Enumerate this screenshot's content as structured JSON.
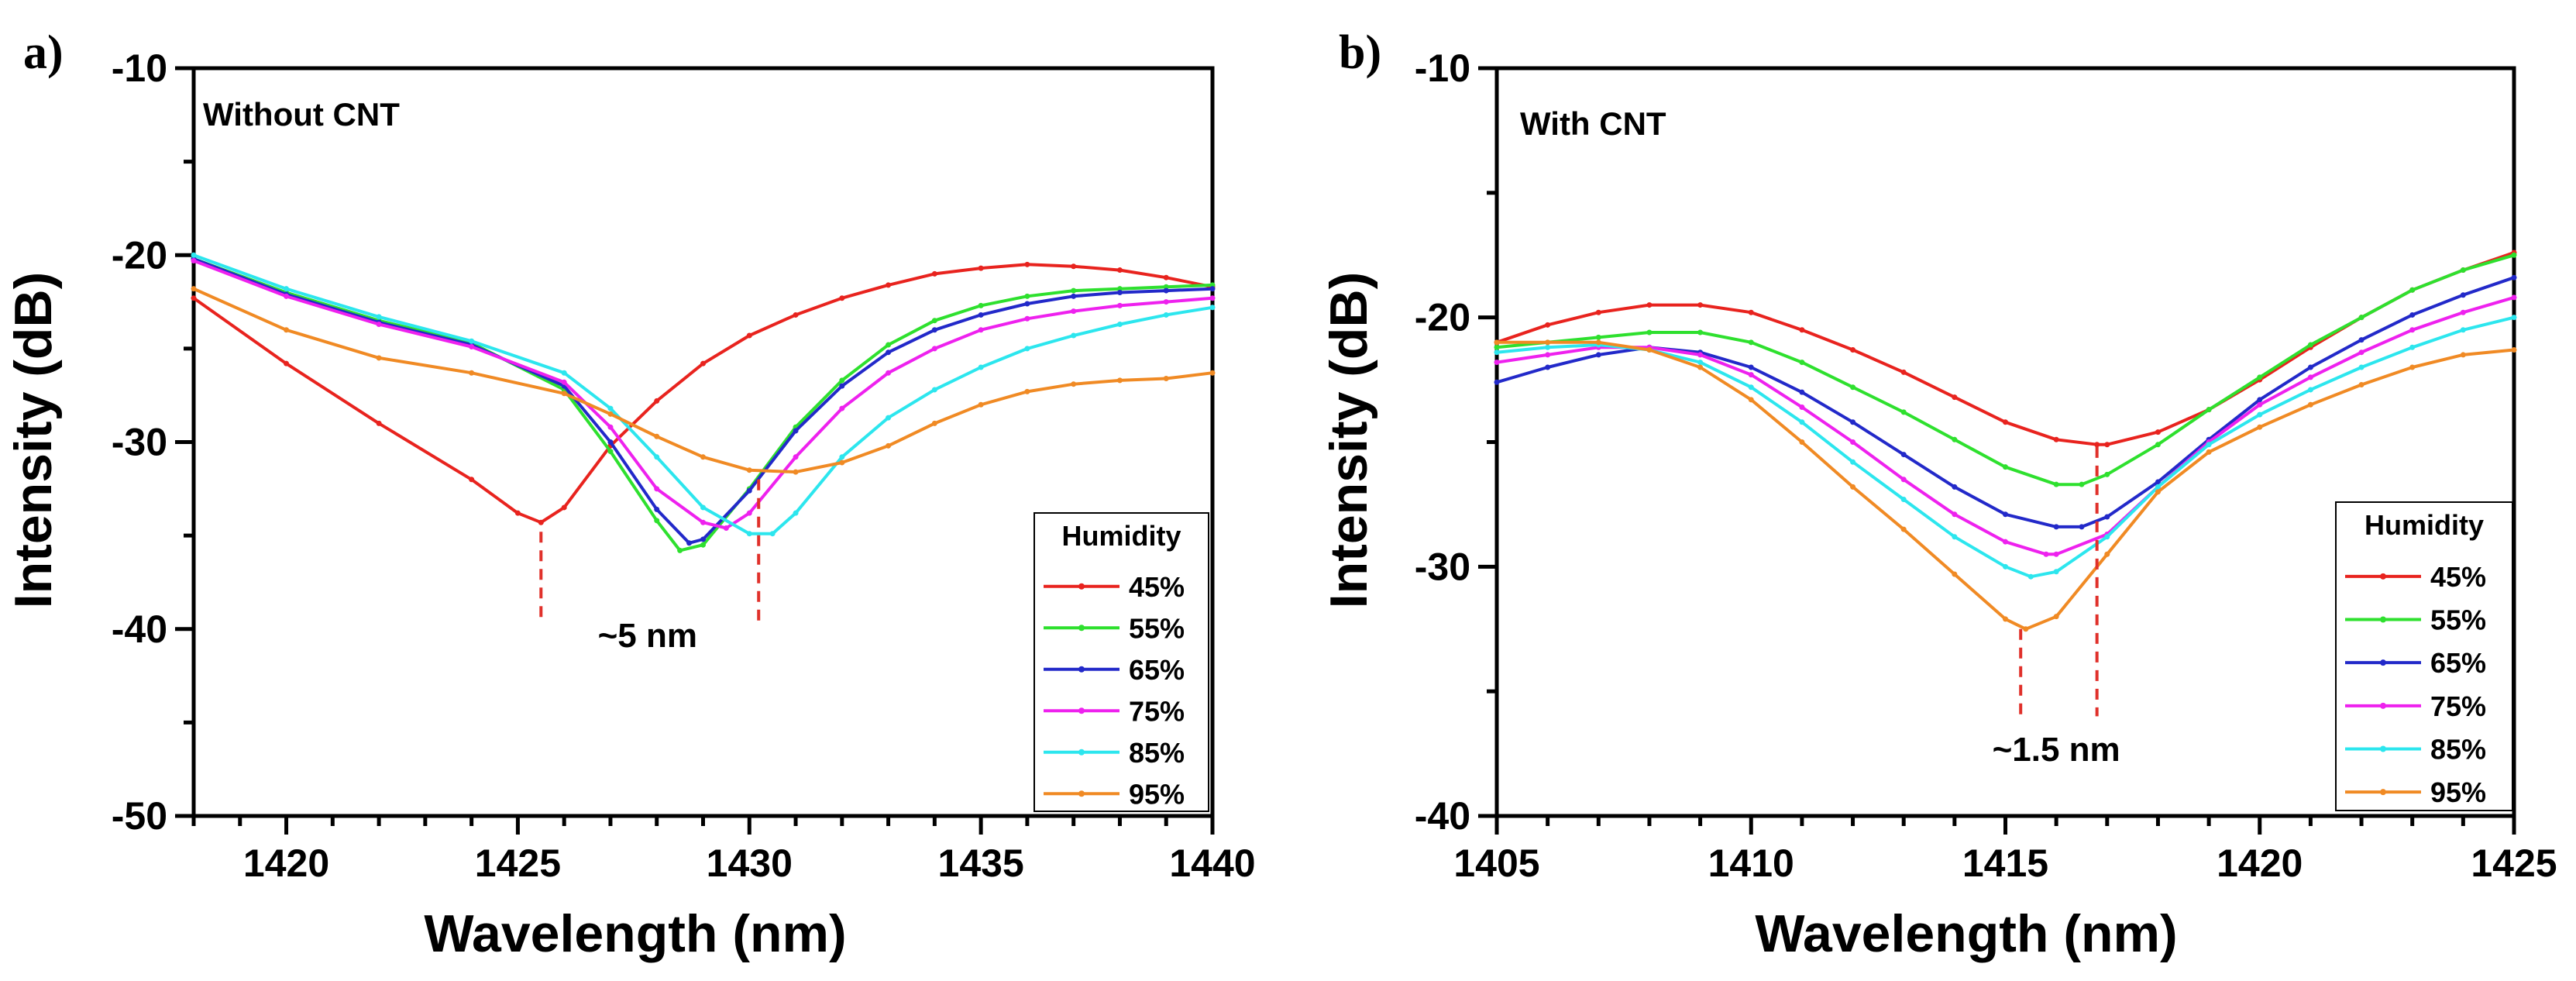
{
  "chart_data": [
    {
      "type": "line",
      "panel_label": "a)",
      "title": "Without CNT",
      "xlabel": "Wavelength (nm)",
      "ylabel": "Intensity (dB)",
      "xlim": [
        1418,
        1440
      ],
      "ylim": [
        -50,
        -10
      ],
      "xticks": [
        1420,
        1425,
        1430,
        1435,
        1440
      ],
      "yticks": [
        -50,
        -40,
        -30,
        -20,
        -10
      ],
      "legend_title": "Humidity",
      "legend_position": "bottom-right",
      "annotation": "~5 nm",
      "annotation_x": 1427.8,
      "annotation_y": -40.3,
      "markers": [
        {
          "x": 1425.5,
          "y_top": -34.8,
          "y_bottom": -39.5
        },
        {
          "x": 1430.2,
          "y_top": -32.0,
          "y_bottom": -39.8
        }
      ],
      "series": [
        {
          "name": "45%",
          "color": "#e8231e",
          "x": [
            1418,
            1420,
            1422,
            1424,
            1425,
            1425.5,
            1426,
            1427,
            1428,
            1429,
            1430,
            1431,
            1432,
            1433,
            1434,
            1435,
            1436,
            1437,
            1438,
            1439,
            1440
          ],
          "y": [
            -22.3,
            -25.8,
            -29.0,
            -32.0,
            -33.8,
            -34.3,
            -33.5,
            -30.2,
            -27.8,
            -25.8,
            -24.3,
            -23.2,
            -22.3,
            -21.6,
            -21.0,
            -20.7,
            -20.5,
            -20.6,
            -20.8,
            -21.2,
            -21.7
          ]
        },
        {
          "name": "55%",
          "color": "#2ee02e",
          "x": [
            1418,
            1420,
            1422,
            1424,
            1426,
            1427,
            1428,
            1428.5,
            1429,
            1430,
            1431,
            1432,
            1433,
            1434,
            1435,
            1436,
            1437,
            1438,
            1439,
            1440
          ],
          "y": [
            -20.2,
            -22.0,
            -23.5,
            -24.7,
            -27.2,
            -30.5,
            -34.2,
            -35.8,
            -35.5,
            -32.5,
            -29.2,
            -26.7,
            -24.8,
            -23.5,
            -22.7,
            -22.2,
            -21.9,
            -21.8,
            -21.7,
            -21.6
          ]
        },
        {
          "name": "65%",
          "color": "#2229c9",
          "x": [
            1418,
            1420,
            1422,
            1424,
            1426,
            1427,
            1428,
            1428.7,
            1429,
            1430,
            1431,
            1432,
            1433,
            1434,
            1435,
            1436,
            1437,
            1438,
            1439,
            1440
          ],
          "y": [
            -20.2,
            -22.1,
            -23.6,
            -24.8,
            -27.0,
            -30.0,
            -33.6,
            -35.4,
            -35.2,
            -32.6,
            -29.4,
            -27.0,
            -25.2,
            -24.0,
            -23.2,
            -22.6,
            -22.2,
            -22.0,
            -21.9,
            -21.8
          ]
        },
        {
          "name": "75%",
          "color": "#ee21ee",
          "x": [
            1418,
            1420,
            1422,
            1424,
            1426,
            1427,
            1428,
            1429,
            1429.5,
            1430,
            1431,
            1432,
            1433,
            1434,
            1435,
            1436,
            1437,
            1438,
            1439,
            1440
          ],
          "y": [
            -20.3,
            -22.2,
            -23.7,
            -24.9,
            -26.8,
            -29.2,
            -32.5,
            -34.3,
            -34.6,
            -33.8,
            -30.8,
            -28.2,
            -26.3,
            -25.0,
            -24.0,
            -23.4,
            -23.0,
            -22.7,
            -22.5,
            -22.3
          ]
        },
        {
          "name": "85%",
          "color": "#2ce6ee",
          "x": [
            1418,
            1420,
            1422,
            1424,
            1426,
            1427,
            1428,
            1429,
            1430,
            1430.5,
            1431,
            1432,
            1433,
            1434,
            1435,
            1436,
            1437,
            1438,
            1439,
            1440
          ],
          "y": [
            -20.0,
            -21.8,
            -23.3,
            -24.6,
            -26.3,
            -28.2,
            -30.8,
            -33.5,
            -34.9,
            -34.9,
            -33.8,
            -30.8,
            -28.7,
            -27.2,
            -26.0,
            -25.0,
            -24.3,
            -23.7,
            -23.2,
            -22.8
          ]
        },
        {
          "name": "95%",
          "color": "#f08a24",
          "x": [
            1418,
            1420,
            1422,
            1424,
            1426,
            1427,
            1428,
            1429,
            1430,
            1431,
            1432,
            1433,
            1434,
            1435,
            1436,
            1437,
            1438,
            1439,
            1440
          ],
          "y": [
            -21.8,
            -24.0,
            -25.5,
            -26.3,
            -27.4,
            -28.5,
            -29.7,
            -30.8,
            -31.5,
            -31.6,
            -31.1,
            -30.2,
            -29.0,
            -28.0,
            -27.3,
            -26.9,
            -26.7,
            -26.6,
            -26.3
          ]
        }
      ]
    },
    {
      "type": "line",
      "panel_label": "b)",
      "title": "With CNT",
      "xlabel": "Wavelength (nm)",
      "ylabel": "Intensity (dB)",
      "xlim": [
        1405,
        1425
      ],
      "ylim": [
        -40,
        -10
      ],
      "xticks": [
        1405,
        1410,
        1415,
        1420,
        1425
      ],
      "yticks": [
        -40,
        -30,
        -20,
        -10
      ],
      "legend_title": "Humidity",
      "legend_position": "bottom-right",
      "annotation": "~1.5 nm",
      "annotation_x": 1416.0,
      "annotation_y": -37.3,
      "markers": [
        {
          "x": 1415.3,
          "y_top": -32.5,
          "y_bottom": -36.0
        },
        {
          "x": 1416.8,
          "y_top": -25.2,
          "y_bottom": -36.0
        }
      ],
      "series": [
        {
          "name": "45%",
          "color": "#e8231e",
          "x": [
            1405,
            1406,
            1407,
            1408,
            1409,
            1410,
            1411,
            1412,
            1413,
            1414,
            1415,
            1416,
            1416.8,
            1417,
            1418,
            1419,
            1420,
            1421,
            1422,
            1423,
            1424,
            1425
          ],
          "y": [
            -21.0,
            -20.3,
            -19.8,
            -19.5,
            -19.5,
            -19.8,
            -20.5,
            -21.3,
            -22.2,
            -23.2,
            -24.2,
            -24.9,
            -25.1,
            -25.1,
            -24.6,
            -23.7,
            -22.5,
            -21.2,
            -20.0,
            -18.9,
            -18.1,
            -17.4
          ]
        },
        {
          "name": "55%",
          "color": "#2ee02e",
          "x": [
            1405,
            1406,
            1407,
            1408,
            1409,
            1410,
            1411,
            1412,
            1413,
            1414,
            1415,
            1416,
            1416.5,
            1417,
            1418,
            1419,
            1420,
            1421,
            1422,
            1423,
            1424,
            1425
          ],
          "y": [
            -21.2,
            -21.0,
            -20.8,
            -20.6,
            -20.6,
            -21.0,
            -21.8,
            -22.8,
            -23.8,
            -24.9,
            -26.0,
            -26.7,
            -26.7,
            -26.3,
            -25.1,
            -23.7,
            -22.4,
            -21.1,
            -20.0,
            -18.9,
            -18.1,
            -17.5
          ]
        },
        {
          "name": "65%",
          "color": "#2229c9",
          "x": [
            1405,
            1406,
            1407,
            1408,
            1409,
            1410,
            1411,
            1412,
            1413,
            1414,
            1415,
            1416,
            1416.5,
            1417,
            1418,
            1419,
            1420,
            1421,
            1422,
            1423,
            1424,
            1425
          ],
          "y": [
            -22.6,
            -22.0,
            -21.5,
            -21.2,
            -21.4,
            -22.0,
            -23.0,
            -24.2,
            -25.5,
            -26.8,
            -27.9,
            -28.4,
            -28.4,
            -28.0,
            -26.6,
            -24.9,
            -23.3,
            -22.0,
            -20.9,
            -19.9,
            -19.1,
            -18.4
          ]
        },
        {
          "name": "75%",
          "color": "#ee21ee",
          "x": [
            1405,
            1406,
            1407,
            1408,
            1409,
            1410,
            1411,
            1412,
            1413,
            1414,
            1415,
            1415.8,
            1416,
            1417,
            1418,
            1419,
            1420,
            1421,
            1422,
            1423,
            1424,
            1425
          ],
          "y": [
            -21.8,
            -21.5,
            -21.2,
            -21.2,
            -21.5,
            -22.3,
            -23.6,
            -25.0,
            -26.5,
            -27.9,
            -29.0,
            -29.5,
            -29.5,
            -28.7,
            -26.8,
            -25.0,
            -23.5,
            -22.4,
            -21.4,
            -20.5,
            -19.8,
            -19.2
          ]
        },
        {
          "name": "85%",
          "color": "#2ce6ee",
          "x": [
            1405,
            1406,
            1407,
            1408,
            1409,
            1410,
            1411,
            1412,
            1413,
            1414,
            1415,
            1415.5,
            1416,
            1417,
            1418,
            1419,
            1420,
            1421,
            1422,
            1423,
            1424,
            1425
          ],
          "y": [
            -21.4,
            -21.2,
            -21.1,
            -21.3,
            -21.8,
            -22.8,
            -24.2,
            -25.8,
            -27.3,
            -28.8,
            -30.0,
            -30.4,
            -30.2,
            -28.8,
            -26.8,
            -25.1,
            -23.9,
            -22.9,
            -22.0,
            -21.2,
            -20.5,
            -20.0
          ]
        },
        {
          "name": "95%",
          "color": "#f08a24",
          "x": [
            1405,
            1406,
            1407,
            1408,
            1409,
            1410,
            1411,
            1412,
            1413,
            1414,
            1415,
            1415.4,
            1416,
            1417,
            1418,
            1419,
            1420,
            1421,
            1422,
            1423,
            1424,
            1425
          ],
          "y": [
            -21.0,
            -21.0,
            -21.0,
            -21.3,
            -22.0,
            -23.3,
            -25.0,
            -26.8,
            -28.5,
            -30.3,
            -32.1,
            -32.5,
            -32.0,
            -29.5,
            -27.0,
            -25.4,
            -24.4,
            -23.5,
            -22.7,
            -22.0,
            -21.5,
            -21.3
          ]
        }
      ]
    }
  ]
}
